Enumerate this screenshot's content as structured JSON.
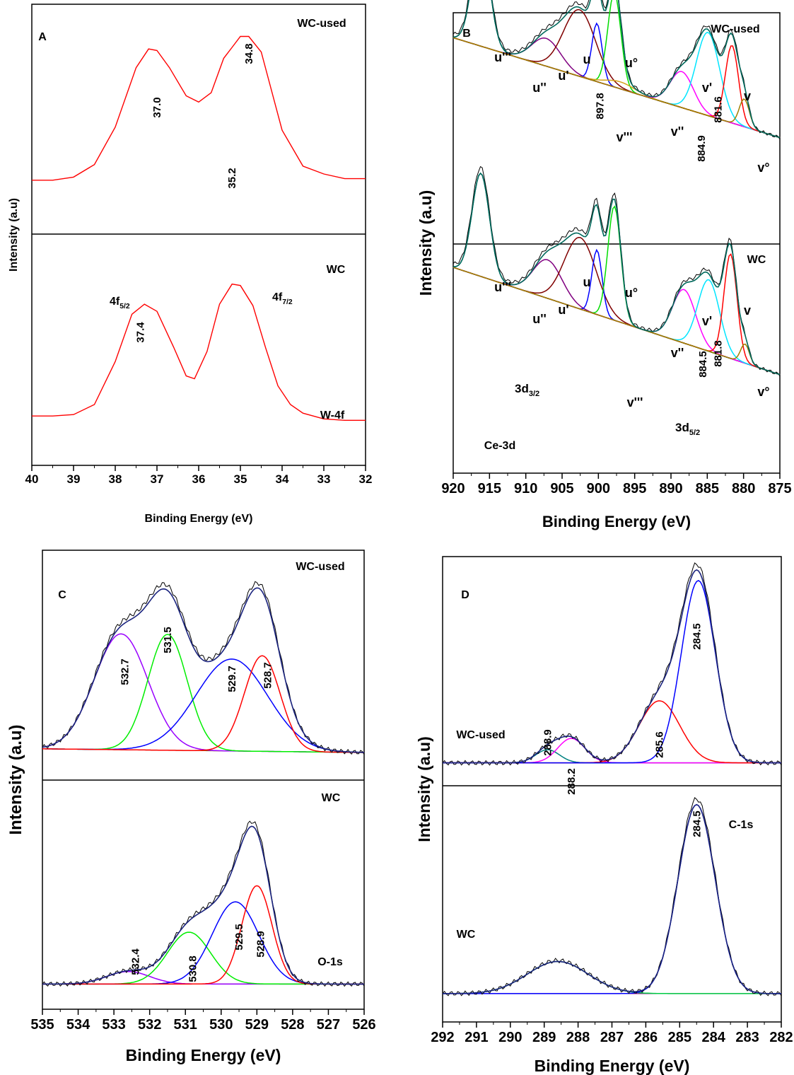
{
  "chart_data": [
    {
      "type": "line",
      "panel_label": "A",
      "xlabel": "Binding Energy (eV)",
      "ylabel": "Intensity (a.u)",
      "xlim": [
        40,
        32
      ],
      "x_ticks": [
        "40",
        "39",
        "38",
        "37",
        "36",
        "35",
        "34",
        "33",
        "32"
      ],
      "subpanels": [
        {
          "sample": "WC-used",
          "annotations": [
            {
              "text": "37.0",
              "x": 37.0
            },
            {
              "text": "34.8",
              "x": 34.8
            }
          ],
          "series": [
            {
              "color": "#ff0000",
              "points": [
                [
                  40,
                  0.08
                ],
                [
                  39.5,
                  0.08
                ],
                [
                  39,
                  0.1
                ],
                [
                  38.5,
                  0.18
                ],
                [
                  38,
                  0.42
                ],
                [
                  37.5,
                  0.8
                ],
                [
                  37.2,
                  0.92
                ],
                [
                  37.0,
                  0.91
                ],
                [
                  36.7,
                  0.8
                ],
                [
                  36.3,
                  0.62
                ],
                [
                  36.0,
                  0.58
                ],
                [
                  35.7,
                  0.64
                ],
                [
                  35.4,
                  0.86
                ],
                [
                  35.2,
                  0.93
                ],
                [
                  35.0,
                  1.0
                ],
                [
                  34.8,
                  1.0
                ],
                [
                  34.5,
                  0.9
                ],
                [
                  34.2,
                  0.6
                ],
                [
                  34.0,
                  0.4
                ],
                [
                  33.5,
                  0.17
                ],
                [
                  33,
                  0.12
                ],
                [
                  32.5,
                  0.09
                ],
                [
                  32,
                  0.09
                ]
              ]
            }
          ]
        },
        {
          "sample": "WC",
          "labels": [
            "4f5/2",
            "4f7/2",
            "W-4f"
          ],
          "annotations": [
            {
              "text": "37.4",
              "x": 37.4
            },
            {
              "text": "35.2",
              "x": 35.2
            }
          ],
          "series": [
            {
              "color": "#ff0000",
              "points": [
                [
                  40,
                  0.07
                ],
                [
                  39.5,
                  0.07
                ],
                [
                  39,
                  0.08
                ],
                [
                  38.5,
                  0.15
                ],
                [
                  38,
                  0.45
                ],
                [
                  37.6,
                  0.78
                ],
                [
                  37.3,
                  0.85
                ],
                [
                  37.0,
                  0.8
                ],
                [
                  36.6,
                  0.55
                ],
                [
                  36.3,
                  0.35
                ],
                [
                  36.1,
                  0.33
                ],
                [
                  35.8,
                  0.52
                ],
                [
                  35.5,
                  0.85
                ],
                [
                  35.2,
                  0.99
                ],
                [
                  35.0,
                  0.98
                ],
                [
                  34.7,
                  0.84
                ],
                [
                  34.4,
                  0.55
                ],
                [
                  34.1,
                  0.28
                ],
                [
                  33.8,
                  0.15
                ],
                [
                  33.5,
                  0.09
                ],
                [
                  33,
                  0.05
                ],
                [
                  32.5,
                  0.04
                ],
                [
                  32,
                  0.04
                ]
              ]
            }
          ]
        }
      ]
    },
    {
      "type": "line",
      "panel_label": "B",
      "xlabel": "Binding Energy (eV)",
      "ylabel": "Intensity (a.u)",
      "xlim": [
        920,
        875
      ],
      "x_ticks": [
        "920",
        "915",
        "910",
        "905",
        "900",
        "895",
        "890",
        "885",
        "880",
        "875"
      ],
      "subpanels": [
        {
          "sample": "WC-used",
          "peak_labels": [
            "u'''",
            "u''",
            "u'",
            "u",
            "u°",
            "v''",
            "v'",
            "v",
            "v°",
            "v'''"
          ],
          "annotations": [
            {
              "text": "897.8",
              "x": 899.8
            },
            {
              "text": "884.9",
              "x": 885.8
            },
            {
              "text": "881.6",
              "x": 883.5
            }
          ],
          "components": [
            {
              "center": 916.2,
              "height": 0.78,
              "width": 1.2,
              "color": "#008080"
            },
            {
              "center": 907.2,
              "height": 0.2,
              "width": 2.0,
              "color": "#800080"
            },
            {
              "center": 902.6,
              "height": 0.48,
              "width": 2.2,
              "color": "#800000"
            },
            {
              "center": 900.2,
              "height": 0.42,
              "width": 0.7,
              "color": "#0000ff"
            },
            {
              "center": 897.8,
              "height": 0.68,
              "width": 0.9,
              "color": "#00dd00"
            },
            {
              "center": 897.0,
              "height": 0.05,
              "width": 2.0,
              "color": "#d4a017"
            },
            {
              "center": 888.5,
              "height": 0.26,
              "width": 1.6,
              "color": "#ff00ff"
            },
            {
              "center": 884.9,
              "height": 0.6,
              "width": 1.6,
              "color": "#00e5ff"
            },
            {
              "center": 881.6,
              "height": 0.56,
              "width": 0.9,
              "color": "#ff0000"
            },
            {
              "center": 879.9,
              "height": 0.2,
              "width": 0.7,
              "color": "#a08000"
            }
          ]
        },
        {
          "sample": "WC",
          "peak_labels": [
            "u'''",
            "u''",
            "u'",
            "u",
            "u°",
            "v''",
            "v'",
            "v",
            "v°",
            "v'''",
            "3d3/2",
            "3d5/2",
            "Ce-3d"
          ],
          "annotations": [
            {
              "text": "884.5",
              "x": 885.6
            },
            {
              "text": "881.8",
              "x": 883.5
            }
          ],
          "components": [
            {
              "center": 916.2,
              "height": 0.75,
              "width": 1.2,
              "color": "#008080"
            },
            {
              "center": 907.0,
              "height": 0.28,
              "width": 2.0,
              "color": "#800080"
            },
            {
              "center": 902.5,
              "height": 0.52,
              "width": 2.2,
              "color": "#800000"
            },
            {
              "center": 900.2,
              "height": 0.47,
              "width": 0.7,
              "color": "#0000ff"
            },
            {
              "center": 897.8,
              "height": 0.83,
              "width": 0.9,
              "color": "#00dd00"
            },
            {
              "center": 888.2,
              "height": 0.39,
              "width": 1.6,
              "color": "#ff00ff"
            },
            {
              "center": 884.8,
              "height": 0.52,
              "width": 1.5,
              "color": "#00e5ff"
            },
            {
              "center": 881.8,
              "height": 0.76,
              "width": 0.9,
              "color": "#ff0000"
            },
            {
              "center": 879.8,
              "height": 0.14,
              "width": 0.6,
              "color": "#a08000"
            }
          ]
        }
      ]
    },
    {
      "type": "line",
      "panel_label": "C",
      "xlabel": "Binding Energy (eV)",
      "ylabel": "Intensity (a.u)",
      "xlim": [
        535,
        526
      ],
      "x_ticks": [
        "535",
        "534",
        "533",
        "532",
        "531",
        "530",
        "529",
        "528",
        "527",
        "526"
      ],
      "subpanels": [
        {
          "sample": "WC-used",
          "annotations": [
            {
              "text": "532.7",
              "x": 532.7
            },
            {
              "text": "531.5",
              "x": 531.5
            },
            {
              "text": "529.7",
              "x": 529.7
            },
            {
              "text": "528.7",
              "x": 528.7
            }
          ],
          "components": [
            {
              "center": 532.8,
              "height": 0.63,
              "width": 0.75,
              "color": "#9900ff"
            },
            {
              "center": 531.5,
              "height": 0.63,
              "width": 0.55,
              "color": "#00ee00"
            },
            {
              "center": 529.7,
              "height": 0.5,
              "width": 1.0,
              "color": "#0000ff"
            },
            {
              "center": 528.85,
              "height": 0.52,
              "width": 0.5,
              "color": "#ff0000"
            }
          ]
        },
        {
          "sample": "WC",
          "labels": [
            "O-1s"
          ],
          "annotations": [
            {
              "text": "532.4",
              "x": 532.4
            },
            {
              "text": "530.8",
              "x": 530.8
            },
            {
              "text": "529.5",
              "x": 529.5
            },
            {
              "text": "528.9",
              "x": 528.9
            }
          ],
          "components": [
            {
              "center": 532.6,
              "height": 0.07,
              "width": 0.6,
              "color": "#9900ff"
            },
            {
              "center": 530.9,
              "height": 0.29,
              "width": 0.6,
              "color": "#00ee00"
            },
            {
              "center": 529.6,
              "height": 0.46,
              "width": 0.65,
              "color": "#0000ff"
            },
            {
              "center": 529.0,
              "height": 0.55,
              "width": 0.42,
              "color": "#ff0000"
            }
          ]
        }
      ]
    },
    {
      "type": "line",
      "panel_label": "D",
      "xlabel": "Binding Energy (eV)",
      "ylabel": "Intensity (a.u)",
      "xlim": [
        292,
        282
      ],
      "x_ticks": [
        "292",
        "291",
        "290",
        "289",
        "288",
        "287",
        "286",
        "285",
        "284",
        "283",
        "282"
      ],
      "subpanels": [
        {
          "sample": "WC-used",
          "annotations": [
            {
              "text": "288.9",
              "x": 288.9
            },
            {
              "text": "288.2",
              "x": 288.2
            },
            {
              "text": "285.6",
              "x": 285.6
            },
            {
              "text": "284.5",
              "x": 284.5
            }
          ],
          "components": [
            {
              "center": 288.9,
              "height": 0.07,
              "width": 0.35,
              "color": "#008080"
            },
            {
              "center": 288.2,
              "height": 0.13,
              "width": 0.4,
              "color": "#ff00ff"
            },
            {
              "center": 285.6,
              "height": 0.33,
              "width": 0.6,
              "color": "#ff0000"
            },
            {
              "center": 284.45,
              "height": 0.97,
              "width": 0.5,
              "color": "#0000ff"
            }
          ]
        },
        {
          "sample": "WC",
          "labels": [
            "C-1s"
          ],
          "annotations": [
            {
              "text": "284.5",
              "x": 284.5
            }
          ],
          "components": [
            {
              "center": 288.6,
              "height": 0.17,
              "width": 0.9,
              "color": "#00cc44"
            },
            {
              "center": 284.5,
              "height": 1.0,
              "width": 0.55,
              "color": "#0000ff"
            }
          ]
        }
      ]
    }
  ]
}
